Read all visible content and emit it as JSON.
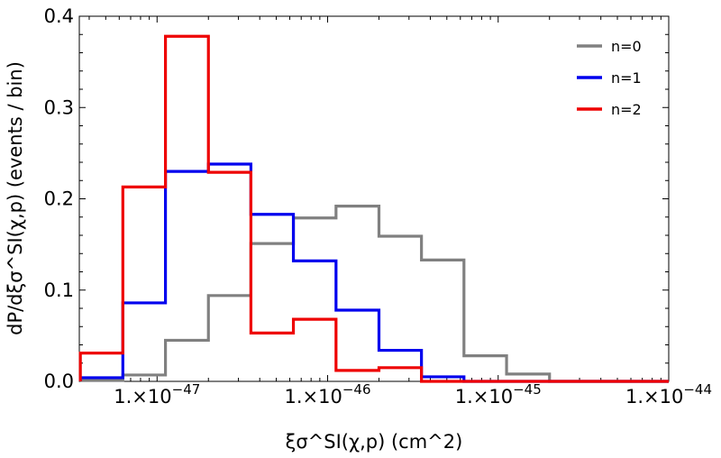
{
  "chart_data": {
    "type": "histogram",
    "title": "",
    "xlabel": "ξσ^SI(χ,p) (cm^2)",
    "ylabel": "dP/dξσ^SI(χ,p) (events / bin)",
    "x_scale": "log",
    "xlim": [
      3.5e-48,
      1e-44
    ],
    "ylim": [
      0,
      0.4
    ],
    "y_ticks": [
      "0.0",
      "0.1",
      "0.2",
      "0.3",
      "0.4"
    ],
    "x_ticks": [
      {
        "value": 1e-47,
        "mantissa": "1.",
        "exponent": "−47"
      },
      {
        "value": 1e-46,
        "mantissa": "1.",
        "exponent": "−46"
      },
      {
        "value": 1e-45,
        "mantissa": "1.",
        "exponent": "−45"
      },
      {
        "value": 1e-44,
        "mantissa": "1.",
        "exponent": "−44"
      }
    ],
    "bin_edges": [
      3.55e-48,
      6.3e-48,
      1.12e-47,
      2e-47,
      3.55e-47,
      6.3e-47,
      1.12e-46,
      2e-46,
      3.55e-46,
      6.3e-46,
      1.12e-45,
      2e-45,
      3.55e-45,
      6.3e-45,
      1e-44
    ],
    "series": [
      {
        "name": "n=0",
        "color": "#808080",
        "values": [
          0.001,
          0.007,
          0.045,
          0.094,
          0.151,
          0.179,
          0.192,
          0.159,
          0.133,
          0.028,
          0.008,
          0.0,
          0.0,
          0.0
        ]
      },
      {
        "name": "n=1",
        "color": "#0000ee",
        "values": [
          0.004,
          0.086,
          0.23,
          0.238,
          0.183,
          0.132,
          0.078,
          0.034,
          0.005,
          0.0,
          0.0,
          0.0,
          0.0,
          0.0
        ]
      },
      {
        "name": "n=2",
        "color": "#ee0000",
        "values": [
          0.031,
          0.213,
          0.378,
          0.229,
          0.053,
          0.068,
          0.012,
          0.015,
          0.0,
          0.0,
          0.0,
          0.0,
          0.0,
          0.0
        ]
      }
    ],
    "legend_position": "top-right"
  }
}
